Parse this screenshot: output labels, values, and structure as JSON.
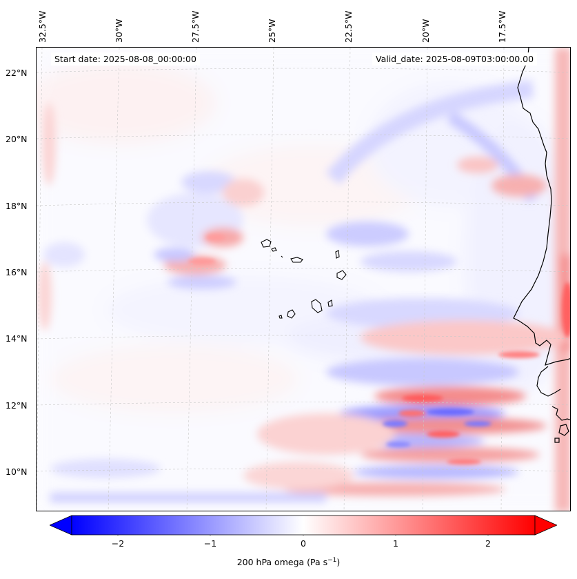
{
  "map": {
    "start_date": "Start date: 2025-08-08_00:00:00",
    "valid_date": "Valid_date: 2025-08-09T03:00:00.00",
    "lon_labels": [
      "32.5°W",
      "30°W",
      "27.5°W",
      "25°W",
      "22.5°W",
      "20°W",
      "17.5°W"
    ],
    "lat_labels": [
      "22°N",
      "20°N",
      "18°N",
      "16°N",
      "14°N",
      "12°N",
      "10°N"
    ],
    "field": "200 hPa omega"
  },
  "colorbar": {
    "ticks": [
      "−2",
      "−1",
      "0",
      "1",
      "2"
    ],
    "label_main": "200 hPa omega (Pa s",
    "label_sup": "−1",
    "label_close": ")",
    "min_color": "#0000ff",
    "mid_color": "#ffffff",
    "max_color": "#ff0000"
  }
}
